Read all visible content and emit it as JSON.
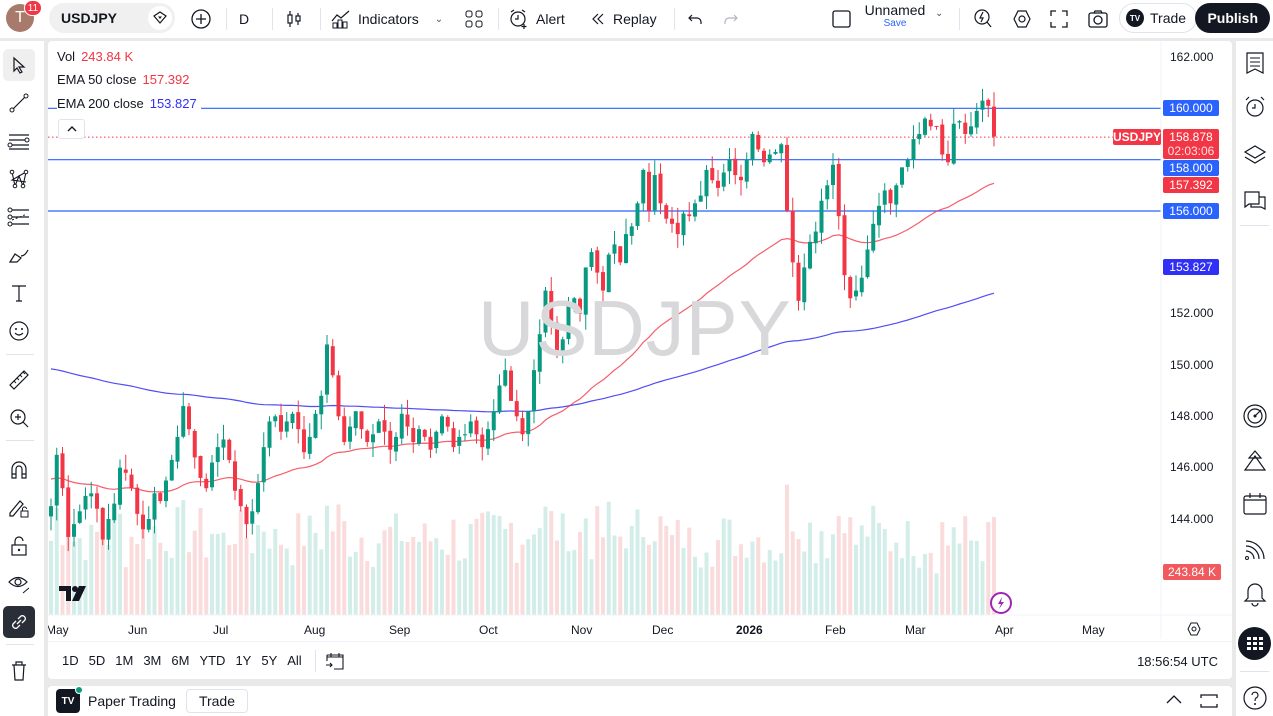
{
  "topbar": {
    "avatar_letter": "T",
    "notification_count": "11",
    "symbol": "USDJPY",
    "interval": "D",
    "indicators_label": "Indicators",
    "alert_label": "Alert",
    "replay_label": "Replay",
    "layout_name": "Unnamed",
    "layout_save": "Save",
    "trade_label": "Trade",
    "publish_label": "Publish"
  },
  "legend": {
    "vol_label": "Vol",
    "vol_value": "243.84 K",
    "ema50_label": "EMA 50 close",
    "ema50_value": "157.392",
    "ema200_label": "EMA 200 close",
    "ema200_value": "153.827"
  },
  "watermark": "USDJPY",
  "price_axis": {
    "ticks": [
      "162.000",
      "152.000",
      "150.000",
      "148.000",
      "146.000",
      "144.000"
    ],
    "hline_tags": [
      "160.000",
      "158.000",
      "156.000"
    ],
    "symbol_tag": "USDJPY",
    "last_price": "158.878",
    "countdown": "02:03:06",
    "ema50_tag": "157.392",
    "ema200_tag": "153.827",
    "volume_tag": "243.84 K"
  },
  "time_axis": [
    "May",
    "Jun",
    "Jul",
    "Aug",
    "Sep",
    "Oct",
    "Nov",
    "Dec",
    "2026",
    "Feb",
    "Mar",
    "Apr",
    "May"
  ],
  "bottombar": {
    "ranges": [
      "1D",
      "5D",
      "1M",
      "3M",
      "6M",
      "YTD",
      "1Y",
      "5Y",
      "All"
    ],
    "clock": "18:56:54 UTC"
  },
  "panel": {
    "title": "Paper Trading",
    "trade_label": "Trade"
  },
  "colors": {
    "up": "#089981",
    "down": "#f23645",
    "ema50": "#f23645",
    "ema200": "#2f2ff5",
    "hline": "#2962ff",
    "vol_up": "#d3ede9",
    "vol_down": "#fadcdc",
    "watermark": "#d8d8da"
  },
  "chart_data": {
    "type": "candlestick",
    "title": "USDJPY, 1D",
    "ylim": [
      142,
      163
    ],
    "y_ticks": [
      144,
      146,
      148,
      150,
      152,
      160,
      162
    ],
    "horizontal_lines": [
      160.0,
      158.0,
      156.0
    ],
    "last_price": 158.878,
    "x_labels": [
      "May",
      "Jun",
      "Jul",
      "Aug",
      "Sep",
      "Oct",
      "Nov",
      "Dec",
      "2026",
      "Feb",
      "Mar",
      "Apr",
      "May"
    ],
    "series": [
      {
        "name": "EMA 50 close",
        "last": 157.392
      },
      {
        "name": "EMA 200 close",
        "last": 153.827
      },
      {
        "name": "Vol",
        "last": "243.84K"
      }
    ],
    "closes_approx": [
      144.5,
      146.5,
      145.2,
      143.3,
      143.8,
      144.3,
      144.9,
      145.0,
      144.4,
      143.2,
      144.0,
      144.6,
      146.0,
      145.8,
      145.2,
      144.2,
      143.6,
      144.0,
      145.0,
      144.7,
      145.5,
      146.3,
      147.2,
      148.4,
      147.5,
      146.4,
      145.6,
      145.2,
      146.2,
      146.8,
      147.1,
      146.3,
      145.1,
      144.5,
      143.8,
      144.3,
      145.4,
      146.8,
      147.8,
      148.0,
      147.4,
      147.8,
      148.1,
      147.5,
      146.6,
      147.2,
      148.1,
      148.8,
      150.8,
      149.6,
      148.0,
      147.0,
      147.6,
      148.2,
      147.5,
      147.0,
      147.3,
      147.8,
      147.4,
      146.7,
      147.2,
      148.1,
      147.6,
      147.0,
      147.5,
      147.2,
      146.7,
      147.4,
      148.0,
      147.6,
      146.8,
      147.2,
      147.3,
      147.8,
      147.3,
      146.8,
      147.5,
      148.2,
      149.2,
      149.8,
      148.6,
      148.0,
      147.3,
      148.2,
      149.8,
      151.2,
      152.9,
      151.6,
      150.5,
      151.0,
      152.3,
      152.6,
      152.0,
      153.8,
      154.4,
      153.6,
      152.9,
      154.3,
      154.7,
      154.0,
      155.1,
      155.4,
      156.3,
      157.6,
      156.0,
      157.4,
      156.3,
      155.7,
      155.5,
      155.1,
      155.9,
      155.8,
      156.3,
      156.6,
      157.6,
      157.2,
      156.9,
      157.5,
      158.0,
      157.4,
      157.2,
      158.0,
      159.0,
      158.4,
      157.9,
      158.2,
      158.3,
      158.6,
      156.0,
      154.0,
      152.5,
      153.8,
      154.8,
      155.2,
      156.4,
      157.0,
      157.8,
      155.8,
      153.5,
      152.6,
      152.9,
      153.4,
      154.5,
      155.5,
      156.2,
      156.8,
      156.3,
      157.0,
      157.7,
      158.0,
      158.8,
      159.0,
      159.6,
      159.3,
      159.3,
      158.2,
      157.9,
      159.4,
      159.5,
      159.0,
      159.3,
      159.9,
      160.3,
      160.1,
      158.9
    ]
  }
}
